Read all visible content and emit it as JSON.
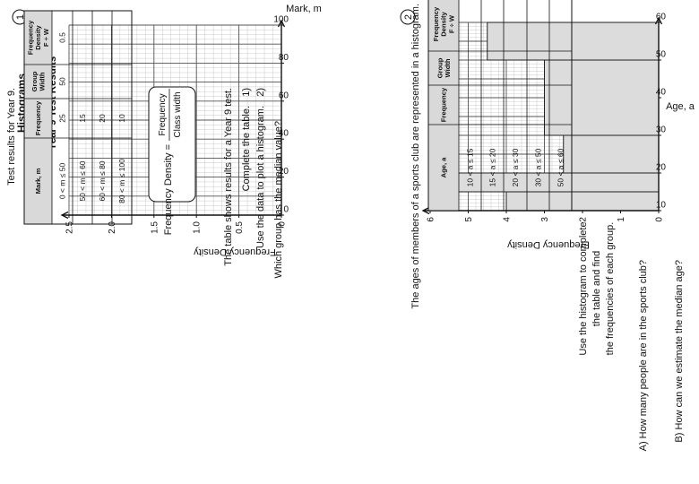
{
  "worksheet": {
    "title": "Histograms",
    "q1": {
      "number": "1",
      "intro": "Test results for Year 9.",
      "table": {
        "headers": [
          "Mark, m",
          "Frequency",
          "Group Width",
          "Frequency Density F ÷ W"
        ],
        "rows": [
          [
            "0 < m ≤ 50",
            "25",
            "50",
            "0.5"
          ],
          [
            "50 < m ≤ 60",
            "15",
            "",
            ""
          ],
          [
            "60 < m ≤ 80",
            "20",
            "",
            ""
          ],
          [
            "80 < m ≤ 100",
            "10",
            "",
            ""
          ]
        ]
      },
      "formula": {
        "lhs": "Frequency Density =",
        "numerator": "Frequency",
        "denominator": "Class width"
      },
      "description": "The table shows results for a Year 9 test.",
      "steps": [
        {
          "num": "1)",
          "text": "Complete the table."
        },
        {
          "num": "2)",
          "text": "Use the data to plot a histogram."
        }
      ],
      "question": "Which group has the median value?",
      "graph_title": "Year 9 Test Results"
    },
    "q2": {
      "number": "2",
      "intro": "The ages of members of a sports club are represented in a histogram.",
      "table": {
        "headers": [
          "Age, a",
          "Frequency",
          "Group Width",
          "Frequency Density F ÷ W"
        ],
        "rows": [
          [
            "10 < a ≤ 15",
            "",
            "",
            ""
          ],
          [
            "15 < a ≤ 20",
            "",
            "",
            ""
          ],
          [
            "20 < a ≤ 30",
            "",
            "",
            ""
          ],
          [
            "30 < a ≤ 50",
            "",
            "",
            ""
          ],
          [
            "50 < a ≤ 60",
            "",
            "",
            ""
          ]
        ]
      },
      "instructions": [
        "Use the histogram to complete",
        "the table and find",
        "the frequencies of each group."
      ],
      "question_a": "A) How many people are in the sports club?",
      "question_b": "B) How can we estimate the median age?"
    }
  },
  "chart_data": [
    {
      "type": "histogram",
      "title": "Year 9 Test Results",
      "xlabel": "Mark, m",
      "ylabel": "Frequency Density",
      "xlim": [
        0,
        100
      ],
      "ylim": [
        0,
        2.5
      ],
      "x_ticks": [
        "0",
        "20",
        "40",
        "60",
        "80",
        "100"
      ],
      "y_ticks": [
        "0",
        "0.5",
        "1.0",
        "1.5",
        "2.0",
        "2.5"
      ],
      "bars": [],
      "grid": true
    },
    {
      "type": "histogram",
      "title": "",
      "xlabel": "Age, a",
      "ylabel": "Frequency Density",
      "xlim": [
        10,
        60
      ],
      "ylim": [
        0,
        6
      ],
      "x_ticks": [
        "10",
        "20",
        "30",
        "40",
        "50",
        "60"
      ],
      "y_ticks": [
        "0",
        "1",
        "2",
        "3",
        "4",
        "5",
        "6"
      ],
      "bars": [
        {
          "x0": 10,
          "x1": 15,
          "density": 4
        },
        {
          "x0": 15,
          "x1": 20,
          "density": 6
        },
        {
          "x0": 20,
          "x1": 30,
          "density": 2.5
        },
        {
          "x0": 30,
          "x1": 50,
          "density": 3
        },
        {
          "x0": 50,
          "x1": 60,
          "density": 4.5
        }
      ],
      "grid": true
    }
  ]
}
